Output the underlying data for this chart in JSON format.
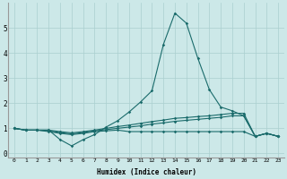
{
  "background_color": "#cce8e8",
  "grid_color": "#aacfcf",
  "line_color": "#1a6b6b",
  "xlabel": "Humidex (Indice chaleur)",
  "xlim": [
    -0.5,
    23.5
  ],
  "ylim": [
    -0.15,
    6.0
  ],
  "x_ticks": [
    0,
    1,
    2,
    3,
    4,
    5,
    6,
    7,
    8,
    9,
    10,
    11,
    12,
    13,
    14,
    15,
    16,
    17,
    18,
    19,
    20,
    21,
    22,
    23
  ],
  "y_ticks": [
    0,
    1,
    2,
    3,
    4,
    5
  ],
  "series": [
    [
      1.0,
      0.93,
      0.93,
      0.93,
      0.55,
      0.3,
      0.55,
      0.75,
      1.05,
      1.3,
      1.65,
      2.05,
      2.5,
      4.35,
      5.6,
      5.2,
      3.8,
      2.55,
      1.85,
      1.7,
      1.5,
      0.68,
      0.8,
      0.68
    ],
    [
      1.0,
      0.93,
      0.93,
      0.93,
      0.87,
      0.82,
      0.87,
      0.93,
      1.0,
      1.07,
      1.13,
      1.2,
      1.27,
      1.33,
      1.4,
      1.43,
      1.47,
      1.5,
      1.55,
      1.6,
      1.6,
      0.68,
      0.8,
      0.68
    ],
    [
      1.0,
      0.93,
      0.93,
      0.87,
      0.8,
      0.75,
      0.8,
      0.87,
      0.9,
      0.93,
      0.87,
      0.87,
      0.87,
      0.87,
      0.87,
      0.87,
      0.87,
      0.87,
      0.87,
      0.87,
      0.87,
      0.68,
      0.8,
      0.68
    ],
    [
      1.0,
      0.93,
      0.93,
      0.9,
      0.83,
      0.78,
      0.83,
      0.9,
      0.95,
      1.0,
      1.05,
      1.1,
      1.17,
      1.22,
      1.28,
      1.32,
      1.36,
      1.4,
      1.44,
      1.5,
      1.5,
      0.68,
      0.8,
      0.68
    ]
  ]
}
